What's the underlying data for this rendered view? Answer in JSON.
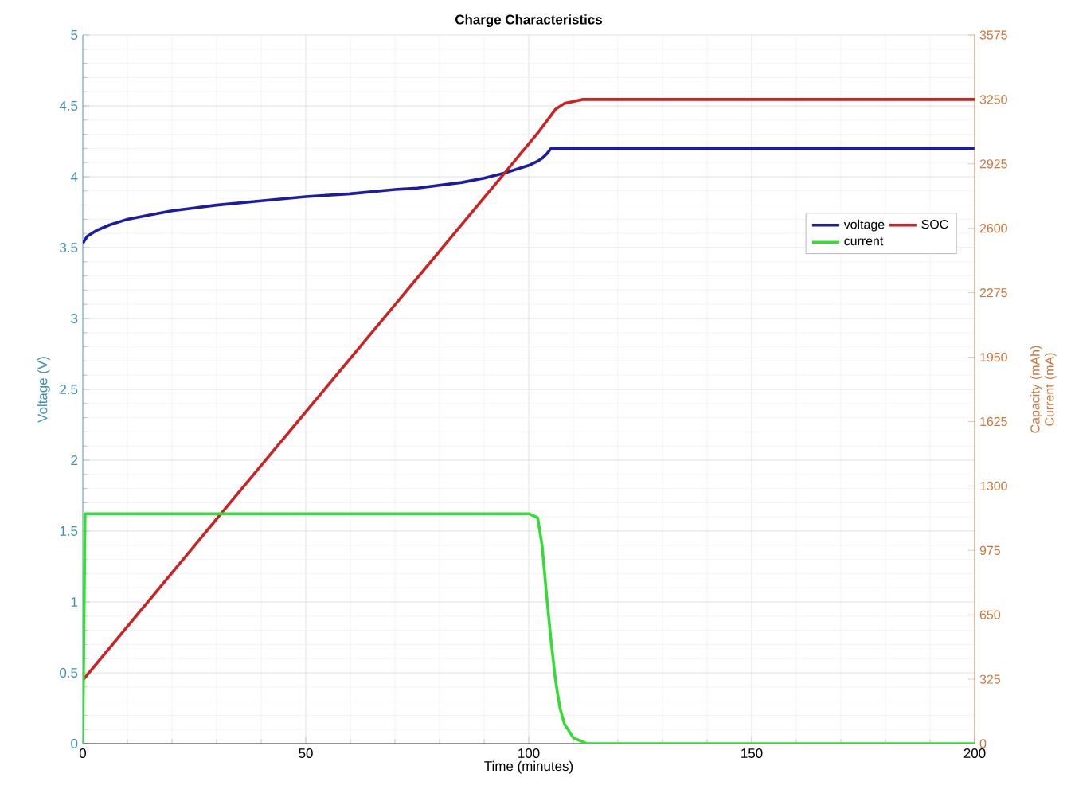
{
  "chart_data": {
    "type": "line",
    "title": "Charge Characteristics",
    "xlabel": "Time (minutes)",
    "ylabel": "Voltage (V)",
    "y2label": "Capacity (mAh) Current (mA)",
    "xlim": [
      0,
      200
    ],
    "xticks": [
      0,
      50,
      100,
      150,
      200
    ],
    "ylim": [
      0,
      5
    ],
    "yticks": [
      0,
      0.5,
      1,
      1.5,
      2,
      2.5,
      3,
      3.5,
      4,
      4.5,
      5
    ],
    "y2lim": [
      0,
      3575
    ],
    "y2ticks": [
      0,
      325,
      650,
      975,
      1300,
      1625,
      1950,
      2275,
      2600,
      2925,
      3250,
      3575
    ],
    "grid": true,
    "legend": "right",
    "marker": "none",
    "line_style": "solid",
    "series": [
      {
        "name": "voltage",
        "color": "#1c1ca0",
        "x": [
          0,
          1,
          3,
          6,
          10,
          15,
          20,
          25,
          30,
          40,
          50,
          60,
          70,
          75,
          80,
          85,
          90,
          95,
          98,
          100,
          102,
          103,
          104,
          105,
          150,
          200
        ],
        "values": [
          3.53,
          3.58,
          3.62,
          3.66,
          3.7,
          3.73,
          3.76,
          3.78,
          3.8,
          3.83,
          3.86,
          3.88,
          3.91,
          3.92,
          3.94,
          3.96,
          3.99,
          4.03,
          4.06,
          4.08,
          4.11,
          4.13,
          4.16,
          4.2,
          4.2,
          4.2
        ]
      },
      {
        "name": "SOC",
        "color": "#cc2222",
        "axis": "y2",
        "x": [
          0,
          31,
          95,
          102,
          104,
          106,
          108,
          110,
          112,
          200
        ],
        "values": [
          320,
          1160,
          2890,
          3080,
          3140,
          3200,
          3230,
          3240,
          3250,
          3250
        ]
      },
      {
        "name": "current",
        "color": "#33dd33",
        "axis": "y2",
        "x": [
          0,
          0.5,
          100,
          102,
          103,
          104,
          105,
          106,
          107,
          108,
          110,
          113,
          200
        ],
        "values": [
          0,
          1160,
          1160,
          1140,
          1000,
          750,
          520,
          320,
          180,
          100,
          30,
          0,
          0
        ]
      }
    ]
  }
}
